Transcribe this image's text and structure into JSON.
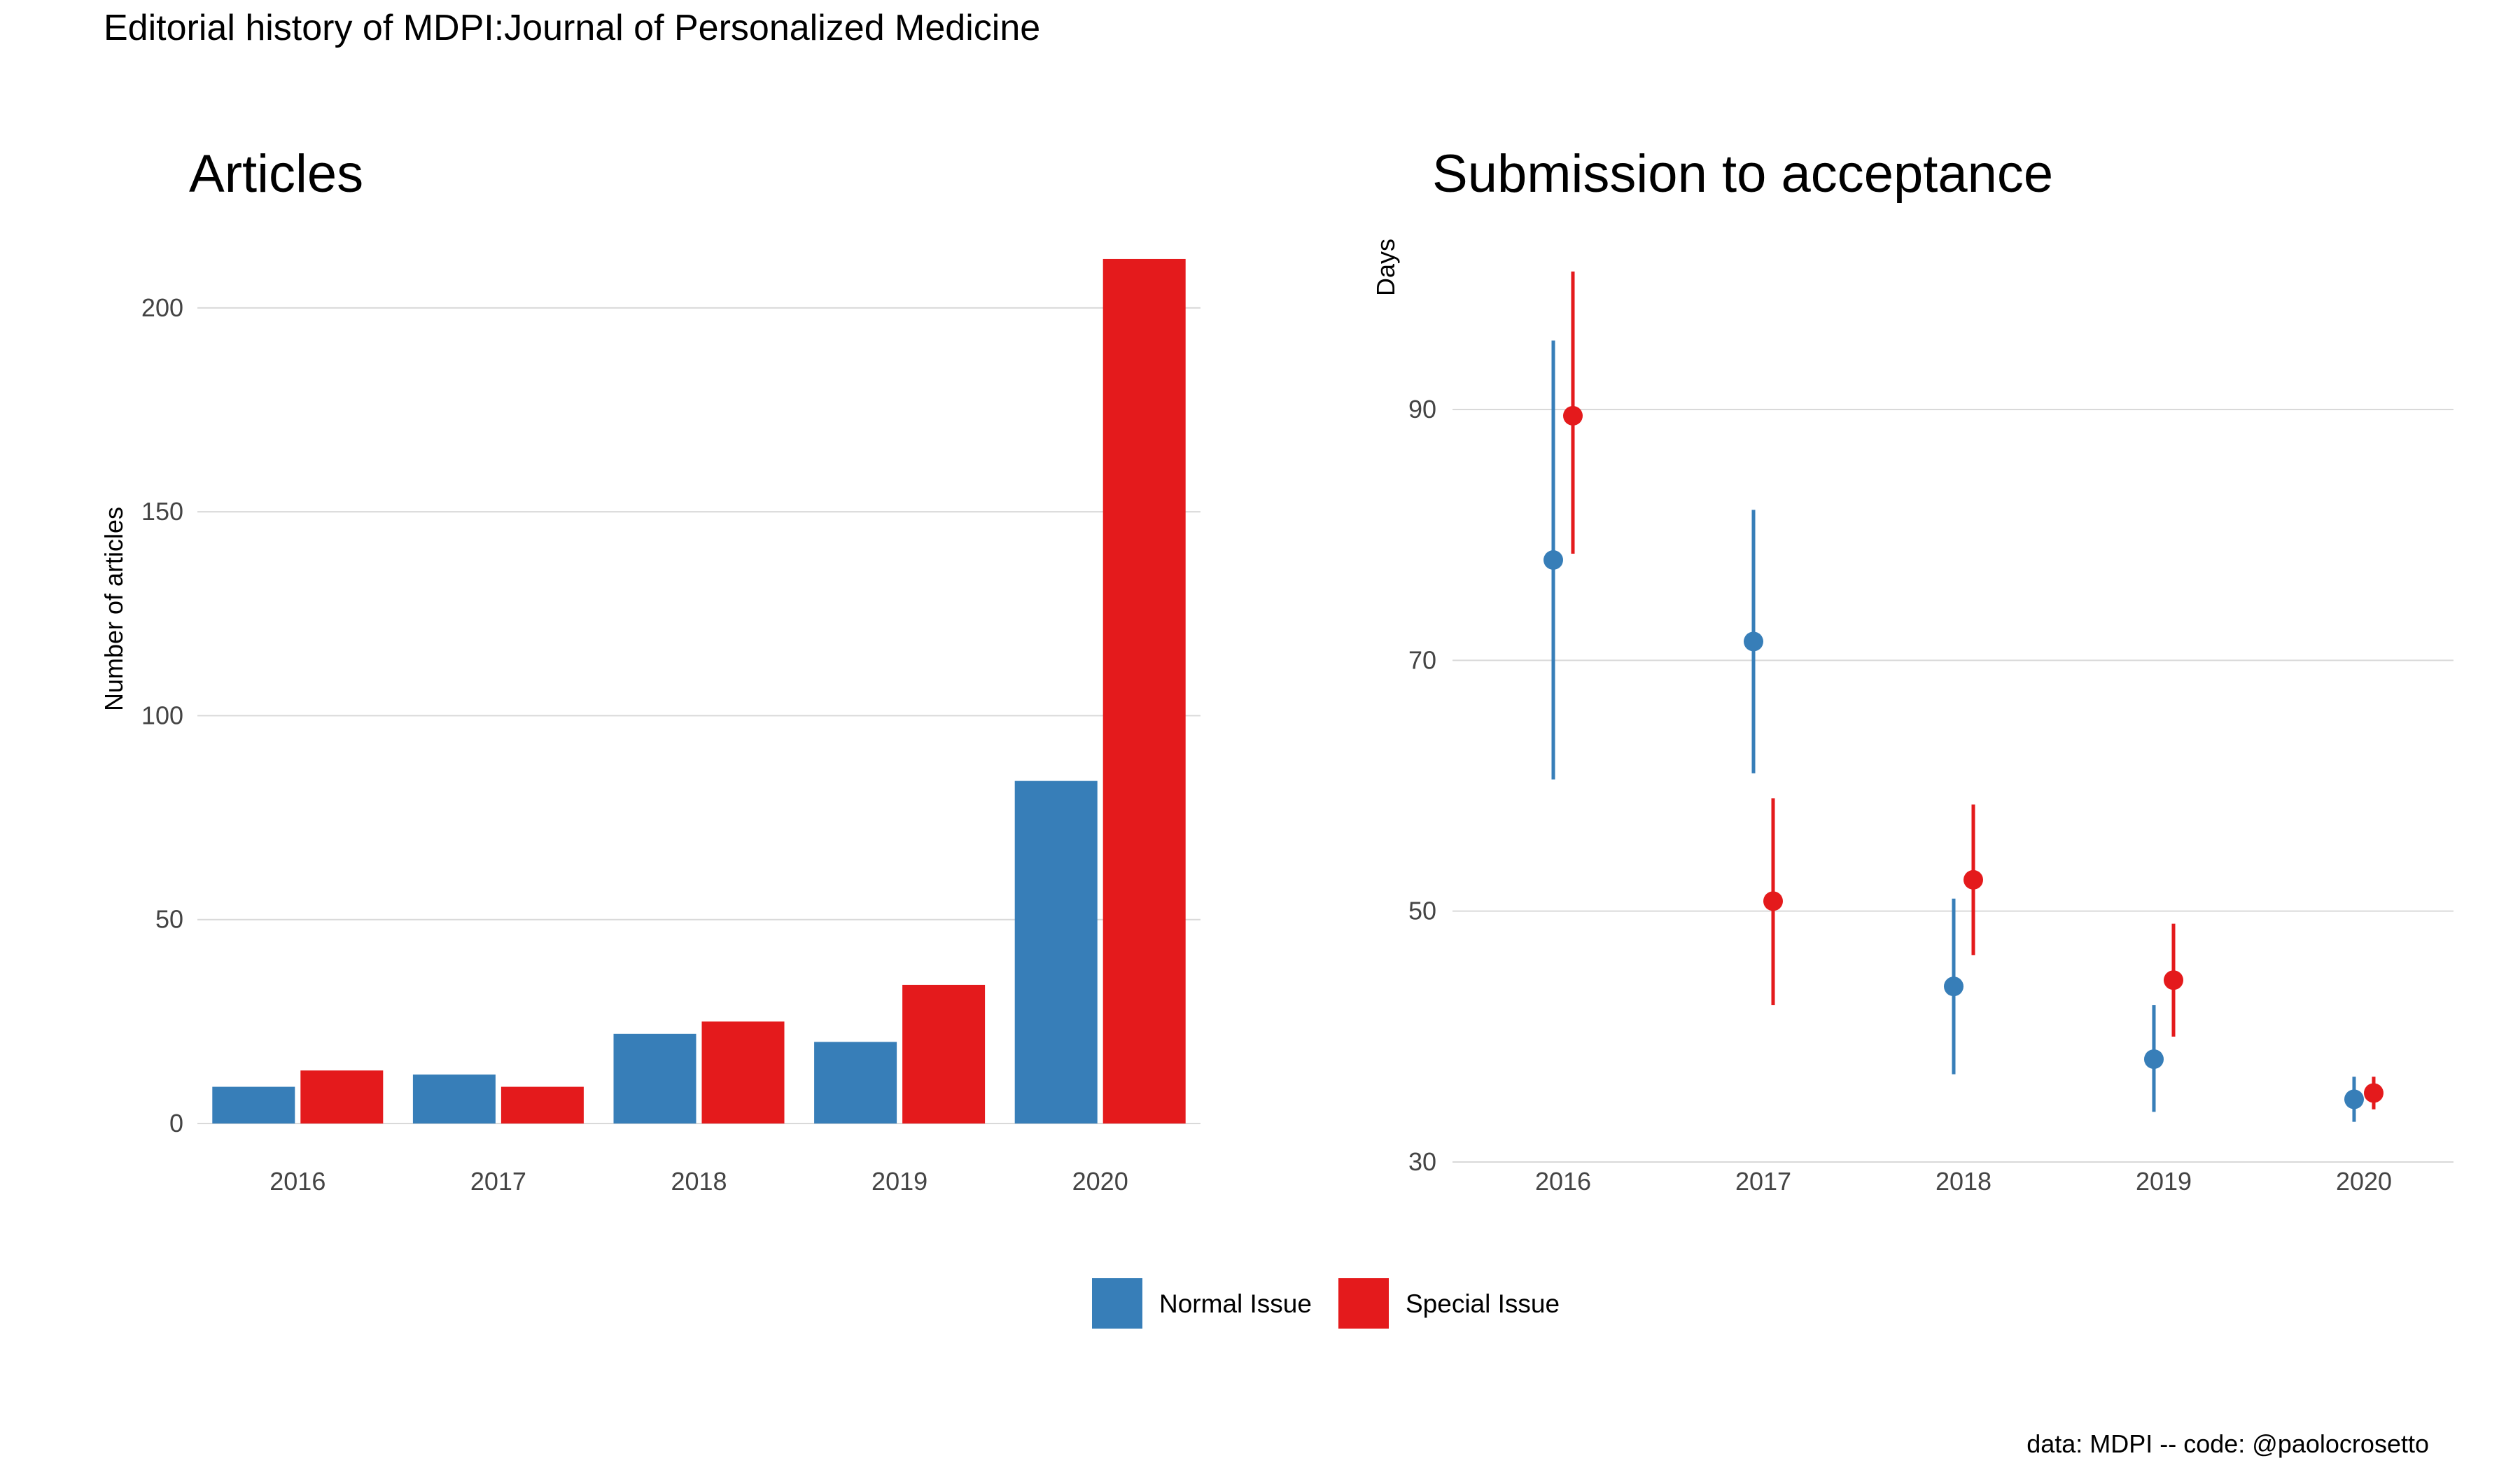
{
  "title": "Editorial history of MDPI:Journal of Personalized Medicine",
  "caption": "data: MDPI -- code: @paolocrosetto",
  "colors": {
    "normal": "#377EB8",
    "special": "#E41A1C",
    "grid": "#D9D9D9"
  },
  "legend": {
    "placement": "bottom-center",
    "items": [
      {
        "label": "Normal Issue",
        "color": "#377EB8"
      },
      {
        "label": "Special Issue",
        "color": "#E41A1C"
      }
    ]
  },
  "chart_data": [
    {
      "type": "bar",
      "title": "Articles",
      "xlabel": "",
      "ylabel": "Number of articles",
      "categories": [
        "2016",
        "2017",
        "2018",
        "2019",
        "2020"
      ],
      "ylim": [
        0,
        218
      ],
      "yticks": [
        0,
        50,
        100,
        150,
        200
      ],
      "grid": true,
      "series": [
        {
          "name": "Normal Issue",
          "color": "#377EB8",
          "values": [
            9,
            12,
            22,
            20,
            84
          ]
        },
        {
          "name": "Special Issue",
          "color": "#E41A1C",
          "values": [
            13,
            9,
            25,
            34,
            212
          ]
        }
      ]
    },
    {
      "type": "scatter",
      "title": "Submission to acceptance",
      "xlabel": "",
      "ylabel": "Days",
      "categories": [
        "2016",
        "2017",
        "2018",
        "2019",
        "2020"
      ],
      "ylim": [
        30,
        101
      ],
      "yticks": [
        30,
        50,
        70,
        90
      ],
      "grid": true,
      "series": [
        {
          "name": "Normal Issue",
          "color": "#377EB8",
          "values": [
            78,
            71.5,
            44,
            38.2,
            35
          ],
          "low": [
            60.5,
            61,
            37,
            34,
            33.2
          ],
          "high": [
            95.5,
            82,
            51,
            42.5,
            36.8
          ]
        },
        {
          "name": "Special Issue",
          "color": "#E41A1C",
          "values": [
            89.5,
            50.8,
            52.5,
            44.5,
            35.5
          ],
          "low": [
            78.5,
            42.5,
            46.5,
            40,
            34.2
          ],
          "high": [
            101,
            59,
            58.5,
            49,
            36.8
          ]
        }
      ]
    }
  ]
}
